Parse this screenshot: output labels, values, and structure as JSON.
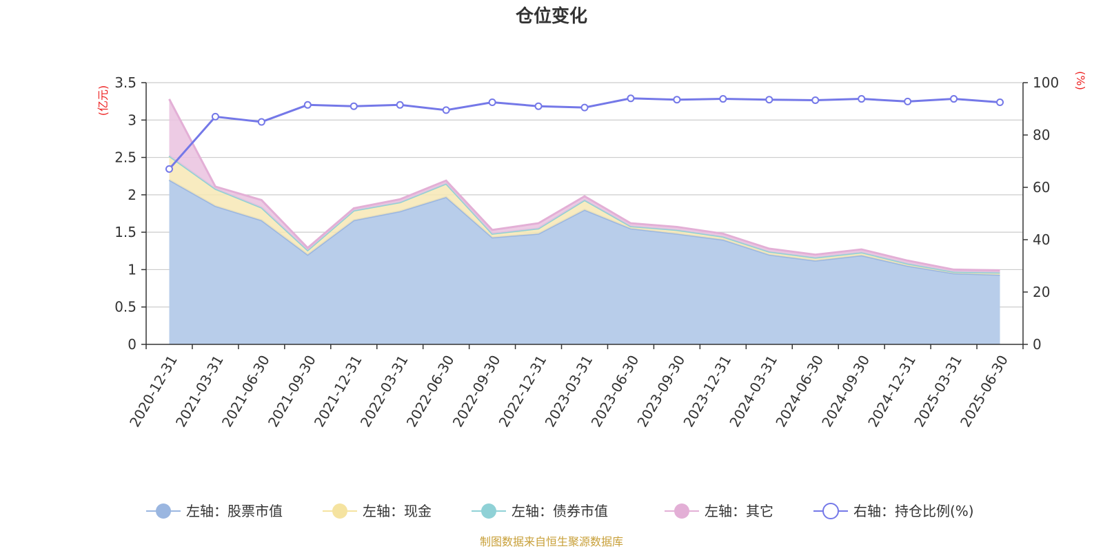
{
  "title": "仓位变化",
  "credit": "制图数据来自恒生聚源数据库",
  "colors": {
    "stock": "#9ab6e0",
    "stock_fill": "#b8cdea",
    "cash": "#f5e3a0",
    "cash_fill": "#f7e8b5",
    "bond": "#8fd1d6",
    "other": "#e3afd6",
    "other_fill": "#eac2df",
    "ratio": "#7478e8",
    "unit": "#ee2222",
    "credit": "#c8a03a",
    "grid": "#cccccc",
    "axis": "#333333"
  },
  "chart_data": {
    "type": "area",
    "title": "仓位变化",
    "categories": [
      "2020-12-31",
      "2021-03-31",
      "2021-06-30",
      "2021-09-30",
      "2021-12-31",
      "2022-03-31",
      "2022-06-30",
      "2022-09-30",
      "2022-12-31",
      "2023-03-31",
      "2023-06-30",
      "2023-09-30",
      "2023-12-31",
      "2024-03-31",
      "2024-06-30",
      "2024-09-30",
      "2024-12-31",
      "2025-03-31",
      "2025-06-30"
    ],
    "y_left": {
      "label": "(亿元)",
      "min": 0,
      "max": 3.5,
      "ticks": [
        0,
        0.5,
        1,
        1.5,
        2,
        2.5,
        3,
        3.5
      ],
      "tick_labels": [
        "0",
        "0.5",
        "1",
        "1.5",
        "2",
        "2.5",
        "3",
        "3.5"
      ]
    },
    "y_right": {
      "label": "(%)",
      "min": 0,
      "max": 100,
      "ticks": [
        0,
        20,
        40,
        60,
        80,
        100
      ],
      "tick_labels": [
        "0",
        "20",
        "40",
        "60",
        "80",
        "100"
      ]
    },
    "grid": true,
    "legend_position": "bottom",
    "series": [
      {
        "name": "左轴：股票市值",
        "axis": "left",
        "stacked": true,
        "values": [
          2.2,
          1.85,
          1.66,
          1.2,
          1.66,
          1.78,
          1.97,
          1.43,
          1.48,
          1.8,
          1.55,
          1.48,
          1.4,
          1.2,
          1.12,
          1.19,
          1.05,
          0.95,
          0.93
        ]
      },
      {
        "name": "左轴：现金",
        "axis": "left",
        "stacked": true,
        "values": [
          0.32,
          0.23,
          0.17,
          0.06,
          0.13,
          0.12,
          0.18,
          0.05,
          0.07,
          0.13,
          0.03,
          0.05,
          0.04,
          0.04,
          0.04,
          0.04,
          0.03,
          0.02,
          0.03
        ]
      },
      {
        "name": "左轴：债券市值",
        "axis": "left",
        "stacked": true,
        "values": [
          0,
          0,
          0,
          0,
          0,
          0,
          0,
          0,
          0,
          0,
          0,
          0,
          0,
          0,
          0,
          0,
          0,
          0,
          0
        ]
      },
      {
        "name": "左轴：其它",
        "axis": "left",
        "stacked": true,
        "values": [
          0.76,
          0.03,
          0.1,
          0.03,
          0.03,
          0.04,
          0.04,
          0.05,
          0.07,
          0.05,
          0.04,
          0.04,
          0.04,
          0.04,
          0.04,
          0.04,
          0.04,
          0.03,
          0.03
        ]
      },
      {
        "name": "右轴：持仓比例(%)",
        "axis": "right",
        "type": "line",
        "values": [
          67,
          87,
          85,
          91.5,
          91,
          91.5,
          89.5,
          92.5,
          91,
          90.5,
          94,
          93.5,
          93.8,
          93.5,
          93.3,
          93.8,
          92.8,
          93.8,
          92.5
        ]
      }
    ]
  }
}
